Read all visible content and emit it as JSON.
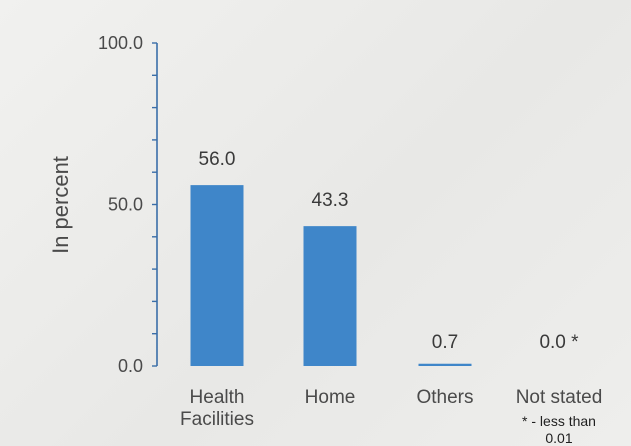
{
  "chart_data": {
    "type": "bar",
    "categories": [
      "Health Facilities",
      "Home",
      "Others",
      "Not stated"
    ],
    "category_lines": [
      [
        "Health",
        "Facilities"
      ],
      [
        "Home"
      ],
      [
        "Others"
      ],
      [
        "Not stated"
      ]
    ],
    "values": [
      56.0,
      43.3,
      0.7,
      0.0
    ],
    "data_labels": [
      "56.0",
      "43.3",
      "0.7",
      "0.0 *"
    ],
    "ylabel": "In percent",
    "xlabel": "",
    "title": "",
    "ylim": [
      0,
      100
    ],
    "yticks": [
      0,
      50,
      100
    ],
    "ytick_labels": [
      "0.0",
      "50.0",
      "100.0"
    ],
    "minor_tick_step": 10,
    "grid": false,
    "legend": "none",
    "footnote_lines": [
      "* - less than",
      "0.01"
    ],
    "colors": {
      "bar": "#3f86c9",
      "axis": "#3a6ea8",
      "text": "#4a4a4a"
    }
  }
}
